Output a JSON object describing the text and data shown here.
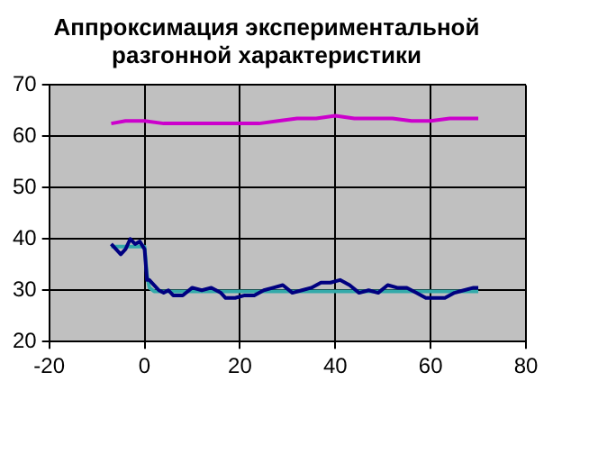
{
  "chart_data": {
    "type": "line",
    "title": "Аппроксимация экспериментальной\nразгонной характеристики",
    "xlim": [
      -20,
      80
    ],
    "xticks": [
      -20,
      0,
      20,
      40,
      60,
      80
    ],
    "ylim": [
      20,
      70
    ],
    "yticks": [
      20,
      30,
      40,
      50,
      60,
      70
    ],
    "grid": true,
    "legend": false,
    "marker": "none",
    "series": [
      {
        "color": "#cc00cc",
        "x": [
          -7,
          -4,
          0,
          4,
          8,
          12,
          16,
          20,
          24,
          28,
          32,
          36,
          40,
          44,
          48,
          52,
          56,
          60,
          64,
          68,
          70
        ],
        "values": [
          62.5,
          63,
          63,
          62.5,
          62.5,
          62.5,
          62.5,
          62.5,
          62.5,
          63,
          63.5,
          63.5,
          64,
          63.5,
          63.5,
          63.5,
          63,
          63,
          63.5,
          63.5,
          63.5
        ]
      },
      {
        "color": "#000080",
        "x": [
          -7,
          -6,
          -5,
          -4,
          -3,
          -2,
          -1,
          0,
          0.5,
          1,
          2,
          3,
          4,
          5,
          6,
          8,
          10,
          12,
          14,
          16,
          17,
          19,
          21,
          23,
          25,
          27,
          29,
          31,
          33,
          35,
          37,
          39,
          41,
          43,
          45,
          47,
          49,
          51,
          53,
          55,
          57,
          59,
          61,
          63,
          65,
          67,
          69,
          70
        ],
        "values": [
          39,
          38,
          37,
          38,
          40,
          39,
          39.5,
          38,
          32,
          32,
          31,
          30,
          29.5,
          30,
          29,
          29,
          30.5,
          30,
          30.5,
          29.5,
          28.5,
          28.5,
          29,
          29,
          30,
          30.5,
          31,
          29.5,
          30,
          30.5,
          31.5,
          31.5,
          32,
          31,
          29.5,
          30,
          29.5,
          31,
          30.5,
          30.5,
          29.5,
          28.5,
          28.5,
          28.5,
          29.5,
          30,
          30.5,
          30.5
        ]
      },
      {
        "color": "#33aaaa",
        "x": [
          -7,
          0,
          0.5,
          1,
          2,
          70
        ],
        "values": [
          38.5,
          38.5,
          33,
          30.5,
          29.8,
          29.8
        ]
      }
    ]
  }
}
